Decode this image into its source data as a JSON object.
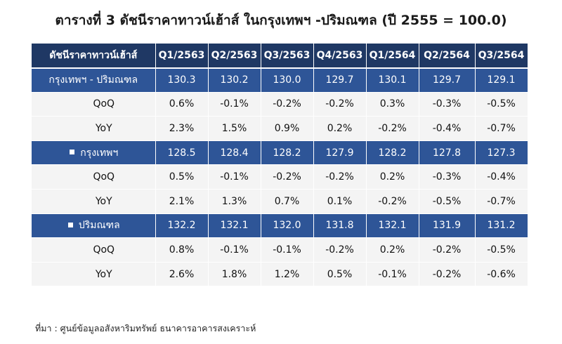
{
  "title": "ตารางที่ 3 ดัชนีราคาทาวน์เฮ้าส์ ในกรุงเทพฯ -ปริมณฑล (ปี 2555 = 100.0)",
  "table": {
    "corner": "ดัชนีราคาทาวน์เฮ้าส์",
    "columns": [
      "Q1/2563",
      "Q2/2563",
      "Q3/2563",
      "Q4/2563",
      "Q1/2564",
      "Q2/2564",
      "Q3/2564"
    ],
    "sections": [
      {
        "label": "กรุงเทพฯ - ปริมณฑล",
        "bullet": false,
        "values": [
          "130.3",
          "130.2",
          "130.0",
          "129.7",
          "130.1",
          "129.7",
          "129.1"
        ],
        "rows": [
          {
            "label": "QoQ",
            "values": [
              "0.6%",
              "-0.1%",
              "-0.2%",
              "-0.2%",
              "0.3%",
              "-0.3%",
              "-0.5%"
            ]
          },
          {
            "label": "YoY",
            "values": [
              "2.3%",
              "1.5%",
              "0.9%",
              "0.2%",
              "-0.2%",
              "-0.4%",
              "-0.7%"
            ]
          }
        ]
      },
      {
        "label": "กรุงเทพฯ",
        "bullet": true,
        "values": [
          "128.5",
          "128.4",
          "128.2",
          "127.9",
          "128.2",
          "127.8",
          "127.3"
        ],
        "rows": [
          {
            "label": "QoQ",
            "values": [
              "0.5%",
              "-0.1%",
              "-0.2%",
              "-0.2%",
              "0.2%",
              "-0.3%",
              "-0.4%"
            ]
          },
          {
            "label": "YoY",
            "values": [
              "2.1%",
              "1.3%",
              "0.7%",
              "0.1%",
              "-0.2%",
              "-0.5%",
              "-0.7%"
            ]
          }
        ]
      },
      {
        "label": "ปริมณฑล",
        "bullet": true,
        "values": [
          "132.2",
          "132.1",
          "132.0",
          "131.8",
          "132.1",
          "131.9",
          "131.2"
        ],
        "rows": [
          {
            "label": "QoQ",
            "values": [
              "0.8%",
              "-0.1%",
              "-0.1%",
              "-0.2%",
              "0.2%",
              "-0.2%",
              "-0.5%"
            ]
          },
          {
            "label": "YoY",
            "values": [
              "2.6%",
              "1.8%",
              "1.2%",
              "0.5%",
              "-0.1%",
              "-0.2%",
              "-0.6%"
            ]
          }
        ]
      }
    ]
  },
  "source": "ที่มา : ศูนย์ข้อมูลอสังหาริมทรัพย์ ธนาคารอาคารสงเคราะห์",
  "colors": {
    "header_dark": "#1f3864",
    "header_row": "#2e5597",
    "negative": "#e02020",
    "sub_row_bg": "#f4f4f4"
  }
}
